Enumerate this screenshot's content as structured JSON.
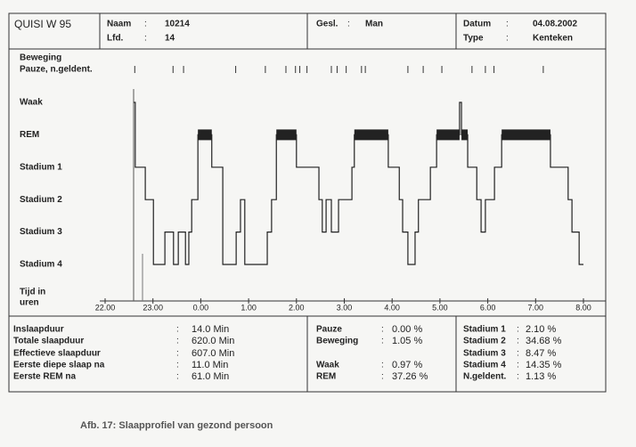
{
  "header": {
    "title": "QUISI W 95",
    "fields": [
      {
        "label": "Naam",
        "sep": ":",
        "value": "10214"
      },
      {
        "label": "Lfd.",
        "sep": ":",
        "value": "14"
      },
      {
        "label": "Gesl.",
        "sep": ":",
        "value": "Man"
      },
      {
        "label": "Datum",
        "sep": ":",
        "value": "04.08.2002"
      },
      {
        "label": "Type",
        "sep": ":",
        "value": "Kenteken"
      }
    ]
  },
  "chart_data": {
    "type": "step",
    "event_labels": [
      "Beweging",
      "Pauze, n.geldent."
    ],
    "events": [
      22.62,
      23.42,
      23.64,
      24.73,
      25.35,
      25.78,
      25.98,
      26.07,
      26.22,
      26.73,
      26.85,
      27.04,
      27.36,
      27.44,
      28.33,
      28.65,
      29.04,
      29.67,
      29.95,
      30.13,
      31.16
    ],
    "xlabel": [
      "Tijd in",
      "uren"
    ],
    "xlim": [
      22,
      32
    ],
    "xticks": [
      {
        "value": 22,
        "label": "22.00"
      },
      {
        "value": 23,
        "label": "23.00"
      },
      {
        "value": 24,
        "label": "0.00"
      },
      {
        "value": 25,
        "label": "1.00"
      },
      {
        "value": 26,
        "label": "2.00"
      },
      {
        "value": 27,
        "label": "3.00"
      },
      {
        "value": 28,
        "label": "4.00"
      },
      {
        "value": 29,
        "label": "5.00"
      },
      {
        "value": 30,
        "label": "6.00"
      },
      {
        "value": 31,
        "label": "7.00"
      },
      {
        "value": 32,
        "label": "8.00"
      }
    ],
    "ylim": [
      0,
      5
    ],
    "yticks": [
      {
        "value": 0,
        "label": "Waak"
      },
      {
        "value": 1,
        "label": "REM"
      },
      {
        "value": 2,
        "label": "Stadium 1"
      },
      {
        "value": 3,
        "label": "Stadium 2"
      },
      {
        "value": 4,
        "label": "Stadium 3"
      },
      {
        "value": 5,
        "label": "Stadium 4"
      }
    ],
    "rem_stage": 1,
    "series": [
      {
        "color": "#222222",
        "x": [
          22.6,
          22.63,
          22.84,
          23.01,
          23.25,
          23.43,
          23.53,
          23.68,
          23.75,
          23.81,
          23.94,
          24.23,
          24.46,
          24.74,
          24.83,
          24.92,
          25.39,
          25.48,
          25.58,
          26.0,
          26.47,
          26.54,
          26.62,
          26.73,
          26.88,
          27.16,
          27.21,
          27.92,
          28.15,
          28.22,
          28.33,
          28.48,
          28.55,
          28.8,
          28.93,
          29.41,
          29.45,
          29.58,
          29.77,
          29.86,
          29.95,
          30.14,
          30.29,
          31.31,
          31.68,
          31.76,
          31.91,
          32.0
        ],
        "values": [
          0,
          2,
          3,
          5,
          4,
          5,
          4,
          5,
          4,
          3,
          1,
          2,
          5,
          4,
          3,
          5,
          4,
          3,
          1,
          2,
          3,
          4,
          3,
          4,
          3,
          2,
          1,
          2,
          3,
          4,
          5,
          4,
          3,
          2,
          1,
          0,
          1,
          2,
          3,
          4,
          3,
          2,
          1,
          2,
          3,
          4,
          5,
          5
        ]
      }
    ]
  },
  "summary": {
    "columns": [
      [
        {
          "label": "Inslaapduur",
          "sep": ":",
          "value": "14.0 Min"
        },
        {
          "label": "Totale slaapduur",
          "sep": ":",
          "value": "620.0 Min"
        },
        {
          "label": "Effectieve slaapduur",
          "sep": ":",
          "value": "607.0 Min"
        },
        {
          "label": "Eerste diepe slaap na",
          "sep": ":",
          "value": "11.0 Min"
        },
        {
          "label": "Eerste REM na",
          "sep": ":",
          "value": "61.0 Min"
        }
      ],
      [
        {
          "label": "Pauze",
          "sep": ":",
          "value": "0.00 %"
        },
        {
          "label": "Beweging",
          "sep": ":",
          "value": "1.05 %"
        },
        {
          "label": "Waak",
          "sep": ":",
          "value": "0.97 %"
        },
        {
          "label": "REM",
          "sep": ":",
          "value": "37.26 %"
        }
      ],
      [
        {
          "label": "Stadium 1",
          "sep": ":",
          "value": "2.10 %"
        },
        {
          "label": "Stadium 2",
          "sep": ":",
          "value": "34.68 %"
        },
        {
          "label": "Stadium 3",
          "sep": ":",
          "value": "8.47 %"
        },
        {
          "label": "Stadium 4",
          "sep": ":",
          "value": "14.35 %"
        },
        {
          "label": "N.geldent.",
          "sep": ":",
          "value": "1.13 %"
        }
      ]
    ]
  },
  "caption": "Afb. 17:  Slaapprofiel van gezond persoon"
}
